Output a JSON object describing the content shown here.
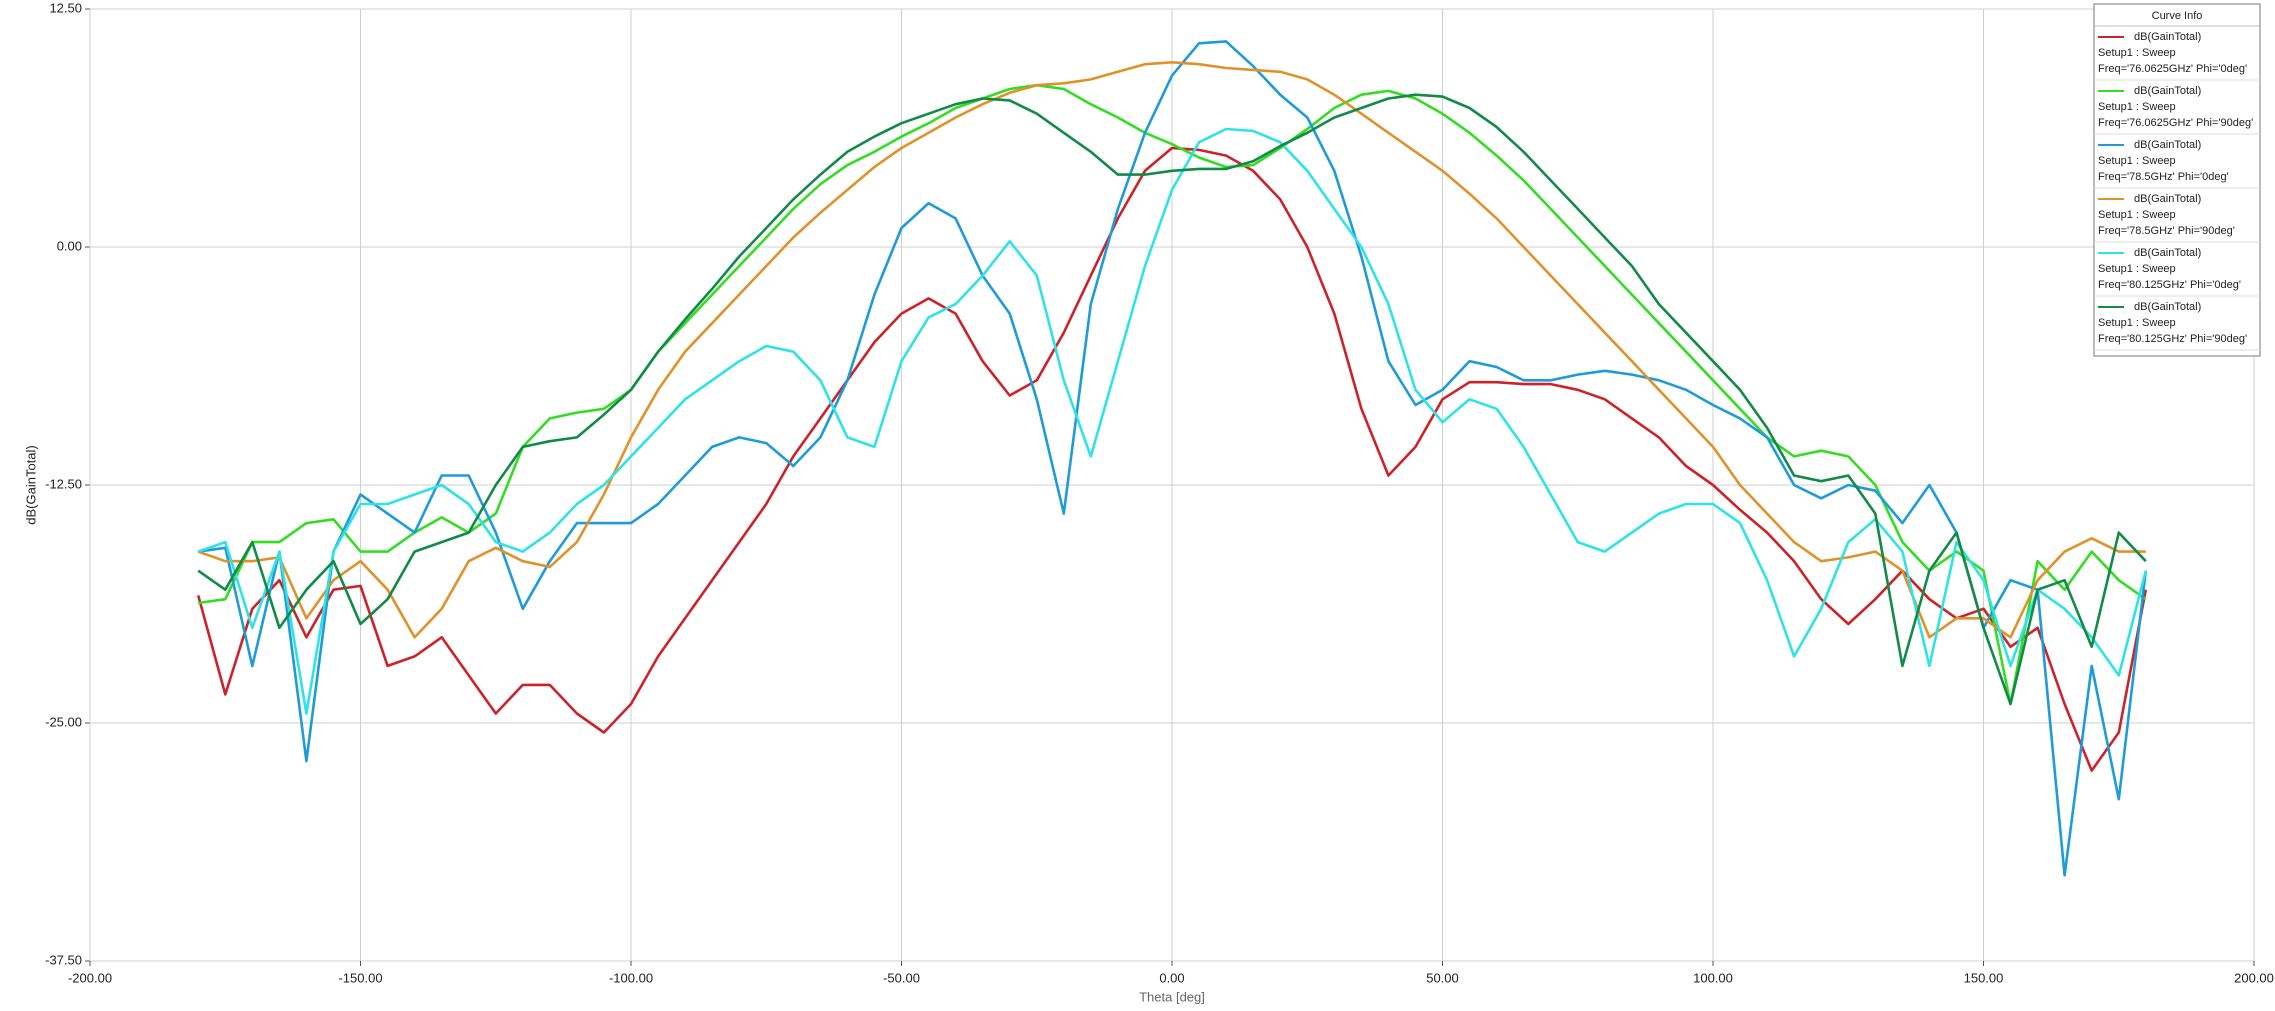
{
  "chart_data": {
    "type": "line",
    "x_label": "Theta [deg]",
    "y_label": "dB(GainTotal)",
    "legend_title": "Curve Info",
    "legend": "upper right",
    "grid": true,
    "xlim": [
      -200,
      200
    ],
    "ylim": [
      -37.5,
      12.5
    ],
    "xticks": [
      {
        "value": -200,
        "label": "-200.00"
      },
      {
        "value": -150,
        "label": "-150.00"
      },
      {
        "value": -100,
        "label": "-100.00"
      },
      {
        "value": -50,
        "label": "-50.00"
      },
      {
        "value": 0,
        "label": "0.00"
      },
      {
        "value": 50,
        "label": "50.00"
      },
      {
        "value": 100,
        "label": "100.00"
      },
      {
        "value": 150,
        "label": "150.00"
      },
      {
        "value": 200,
        "label": "200.00"
      }
    ],
    "yticks": [
      {
        "value": -37.5,
        "label": "-37.50"
      },
      {
        "value": -25,
        "label": "-25.00"
      },
      {
        "value": -12.5,
        "label": "-12.50"
      },
      {
        "value": 0,
        "label": "0.00"
      },
      {
        "value": 12.5,
        "label": "12.50"
      }
    ],
    "x": [
      -180,
      -175,
      -170,
      -165,
      -160,
      -155,
      -150,
      -145,
      -140,
      -135,
      -130,
      -125,
      -120,
      -115,
      -110,
      -105,
      -100,
      -95,
      -90,
      -85,
      -80,
      -75,
      -70,
      -65,
      -60,
      -55,
      -50,
      -45,
      -40,
      -35,
      -30,
      -25,
      -20,
      -15,
      -10,
      -5,
      0,
      5,
      10,
      15,
      20,
      25,
      30,
      35,
      40,
      45,
      50,
      55,
      60,
      65,
      70,
      75,
      80,
      85,
      90,
      95,
      100,
      105,
      110,
      115,
      120,
      125,
      130,
      135,
      140,
      145,
      150,
      155,
      160,
      165,
      170,
      175,
      180
    ],
    "series": [
      {
        "name": "dB(GainTotal)",
        "setup": "Setup1 : Sweep",
        "label": "Freq='76.0625GHz' Phi='0deg'",
        "color": "#cc2229",
        "values": [
          -18.3,
          -23.5,
          -19,
          -17.5,
          -20.5,
          -18,
          -17.8,
          -22,
          -21.5,
          -20.5,
          -22.5,
          -24.5,
          -23,
          -23,
          -24.5,
          -25.5,
          -24,
          -21.5,
          -19.5,
          -17.5,
          -15.5,
          -13.5,
          -11,
          -9,
          -7,
          -5,
          -3.5,
          -2.7,
          -3.5,
          -6,
          -7.8,
          -7,
          -4.5,
          -1.5,
          1.5,
          4,
          5.2,
          5.1,
          4.8,
          4,
          2.5,
          0,
          -3.5,
          -8.5,
          -12,
          -10.5,
          -8,
          -7.1,
          -7.1,
          -7.2,
          -7.2,
          -7.5,
          -8,
          -9,
          -10,
          -11.5,
          -12.5,
          -13.8,
          -15,
          -16.5,
          -18.5,
          -19.8,
          -18.5,
          -17,
          -18.5,
          -19.5,
          -19,
          -21,
          -20,
          -24,
          -27.5,
          -25.5,
          -18
        ]
      },
      {
        "name": "dB(GainTotal)",
        "setup": "Setup1 : Sweep",
        "label": "Freq='76.0625GHz' Phi='90deg'",
        "color": "#33dd22",
        "values": [
          -18.7,
          -18.5,
          -15.5,
          -15.5,
          -14.5,
          -14.3,
          -16,
          -16,
          -15,
          -14.2,
          -15,
          -14,
          -10.5,
          -9,
          -8.7,
          -8.5,
          -7.5,
          -5.5,
          -4,
          -2.5,
          -1,
          0.5,
          2,
          3.3,
          4.3,
          5,
          5.8,
          6.5,
          7.3,
          7.8,
          8.3,
          8.5,
          8.3,
          7.5,
          6.8,
          6,
          5.4,
          4.7,
          4.2,
          4.3,
          5.2,
          6.2,
          7.3,
          8,
          8.2,
          7.8,
          7,
          6,
          4.8,
          3.5,
          2,
          0.5,
          -1,
          -2.5,
          -4,
          -5.5,
          -7,
          -8.5,
          -10,
          -11,
          -10.7,
          -11,
          -12.5,
          -15.5,
          -17,
          -16,
          -17,
          -24,
          -16.5,
          -18,
          -16,
          -17.5,
          -18.5
        ]
      },
      {
        "name": "dB(GainTotal)",
        "setup": "Setup1 : Sweep",
        "label": "Freq='78.5GHz' Phi='0deg'",
        "color": "#1e9bd8",
        "values": [
          -16,
          -15.8,
          -22,
          -16,
          -27,
          -16,
          -13,
          -14,
          -15,
          -12,
          -12,
          -15,
          -19,
          -16.5,
          -14.5,
          -14.5,
          -14.5,
          -13.5,
          -12,
          -10.5,
          -10,
          -10.3,
          -11.5,
          -10,
          -7,
          -2.5,
          1,
          2.3,
          1.5,
          -1.5,
          -3.5,
          -8,
          -14,
          -3,
          2,
          6,
          9,
          10.7,
          10.8,
          9.5,
          8,
          6.8,
          4,
          -0.5,
          -6,
          -8.3,
          -7.5,
          -6,
          -6.3,
          -7,
          -7,
          -6.7,
          -6.5,
          -6.7,
          -7,
          -7.5,
          -8.3,
          -9,
          -10,
          -12.5,
          -13.2,
          -12.5,
          -12.8,
          -14.5,
          -12.5,
          -15,
          -20,
          -17.5,
          -18,
          -33,
          -22,
          -29,
          -17
        ]
      },
      {
        "name": "dB(GainTotal)",
        "setup": "Setup1 : Sweep",
        "label": "Freq='78.5GHz' Phi='90deg'",
        "color": "#e0922a",
        "values": [
          -16,
          -16.5,
          -16.5,
          -16.3,
          -19.5,
          -17.5,
          -16.5,
          -18,
          -20.5,
          -19,
          -16.5,
          -15.8,
          -16.5,
          -16.8,
          -15.5,
          -13,
          -10,
          -7.5,
          -5.5,
          -4,
          -2.5,
          -1,
          0.5,
          1.8,
          3,
          4.2,
          5.2,
          6,
          6.8,
          7.5,
          8.1,
          8.5,
          8.6,
          8.8,
          9.2,
          9.6,
          9.7,
          9.6,
          9.4,
          9.3,
          9.2,
          8.8,
          8,
          7,
          6,
          5,
          4,
          2.8,
          1.5,
          0,
          -1.5,
          -3,
          -4.5,
          -6,
          -7.5,
          -9,
          -10.5,
          -12.5,
          -14,
          -15.5,
          -16.5,
          -16.3,
          -16,
          -17,
          -20.5,
          -19.5,
          -19.5,
          -20.5,
          -17.5,
          -16,
          -15.3,
          -16,
          -16
        ]
      },
      {
        "name": "dB(GainTotal)",
        "setup": "Setup1 : Sweep",
        "label": "Freq='80.125GHz' Phi='0deg'",
        "color": "#2ee3e6",
        "values": [
          -16,
          -15.5,
          -20,
          -16,
          -24.5,
          -16,
          -13.5,
          -13.5,
          -13,
          -12.5,
          -13.5,
          -15.5,
          -16,
          -15,
          -13.5,
          -12.5,
          -11,
          -9.5,
          -8,
          -7,
          -6,
          -5.2,
          -5.5,
          -7,
          -10,
          -10.5,
          -6,
          -3.7,
          -3,
          -1.5,
          0.3,
          -1.5,
          -7,
          -11,
          -6,
          -1,
          3,
          5.5,
          6.2,
          6.1,
          5.5,
          4,
          2,
          0,
          -3,
          -7.5,
          -9.2,
          -8,
          -8.5,
          -10.5,
          -13,
          -15.5,
          -16,
          -15,
          -14,
          -13.5,
          -13.5,
          -14.5,
          -17.5,
          -21.5,
          -19,
          -15.5,
          -14.3,
          -16,
          -22,
          -15.5,
          -17.5,
          -22,
          -18,
          -19,
          -20.5,
          -22.5,
          -17
        ]
      },
      {
        "name": "dB(GainTotal)",
        "setup": "Setup1 : Sweep",
        "label": "Freq='80.125GHz' Phi='90deg'",
        "color": "#128a48",
        "values": [
          -17,
          -18,
          -15.5,
          -20,
          -18,
          -16.5,
          -19.8,
          -18.5,
          -16,
          -15.5,
          -15,
          -12.5,
          -10.5,
          -10.2,
          -10,
          -8.8,
          -7.5,
          -5.5,
          -3.8,
          -2.2,
          -0.5,
          1,
          2.5,
          3.8,
          5,
          5.8,
          6.5,
          7,
          7.5,
          7.8,
          7.7,
          7,
          6,
          5,
          3.8,
          3.8,
          4,
          4.1,
          4.1,
          4.5,
          5.3,
          6,
          6.8,
          7.3,
          7.8,
          8,
          7.9,
          7.3,
          6.3,
          5,
          3.5,
          2,
          0.5,
          -1,
          -3,
          -4.5,
          -6,
          -7.5,
          -9.5,
          -12,
          -12.3,
          -12,
          -14,
          -22,
          -17,
          -15,
          -20,
          -24,
          -18,
          -17.5,
          -21,
          -15,
          -16.5
        ]
      }
    ]
  }
}
